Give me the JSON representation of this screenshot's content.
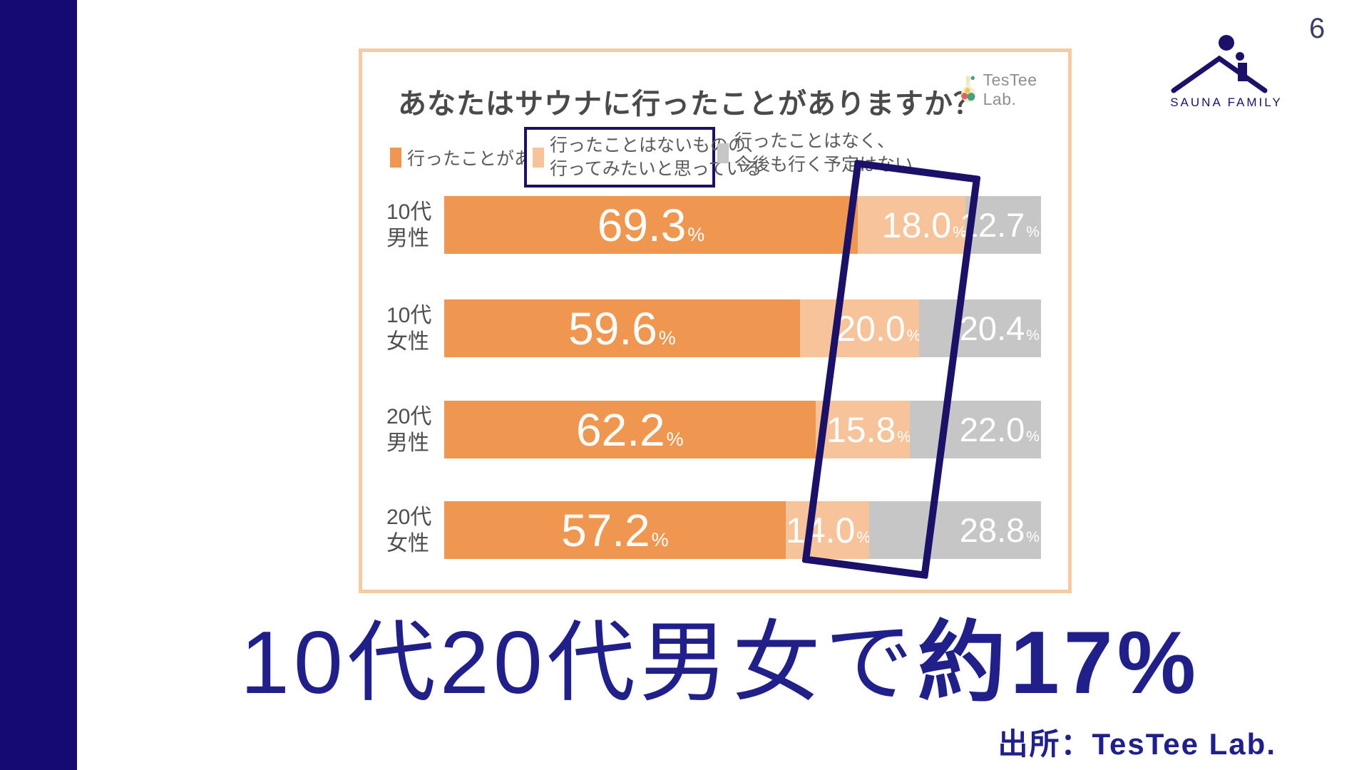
{
  "page": {
    "number": "6"
  },
  "brand": {
    "name": "SAUNA FAMILY"
  },
  "chart": {
    "title": "あなたはサウナに行ったことがありますか？",
    "watermark": "TesTee Lab.",
    "unit": "%",
    "legend": [
      {
        "label": "行ったことがある"
      },
      {
        "lines": [
          "行ったことはないものの、",
          "行ってみたいと思っている"
        ]
      },
      {
        "lines": [
          "行ったことはなく、",
          "今後も行く予定はない"
        ]
      }
    ],
    "rows": [
      {
        "label_lines": [
          "10代",
          "男性"
        ],
        "segments": [
          {
            "value": 69.3,
            "text": "69.3"
          },
          {
            "value": 18.0,
            "text": "18.0"
          },
          {
            "value": 12.7,
            "text": "12.7"
          }
        ]
      },
      {
        "label_lines": [
          "10代",
          "女性"
        ],
        "segments": [
          {
            "value": 59.6,
            "text": "59.6"
          },
          {
            "value": 20.0,
            "text": "20.0"
          },
          {
            "value": 20.4,
            "text": "20.4"
          }
        ]
      },
      {
        "label_lines": [
          "20代",
          "男性"
        ],
        "segments": [
          {
            "value": 62.2,
            "text": "62.2"
          },
          {
            "value": 15.8,
            "text": "15.8"
          },
          {
            "value": 22.0,
            "text": "22.0"
          }
        ]
      },
      {
        "label_lines": [
          "20代",
          "女性"
        ],
        "segments": [
          {
            "value": 57.2,
            "text": "57.2"
          },
          {
            "value": 14.0,
            "text": "14.0"
          },
          {
            "value": 28.8,
            "text": "28.8"
          }
        ]
      }
    ]
  },
  "chart_data": {
    "type": "bar",
    "orientation": "horizontal",
    "stacked": true,
    "title": "あなたはサウナに行ったことがありますか？",
    "categories": [
      "10代男性",
      "10代女性",
      "20代男性",
      "20代女性"
    ],
    "series": [
      {
        "name": "行ったことがある",
        "color": "#ef9650",
        "values": [
          69.3,
          59.6,
          62.2,
          57.2
        ]
      },
      {
        "name": "行ったことはないものの、行ってみたいと思っている",
        "color": "#f6c39a",
        "values": [
          18.0,
          20.0,
          15.8,
          14.0
        ]
      },
      {
        "name": "行ったことはなく、今後も行く予定はない",
        "color": "#c6c6c6",
        "values": [
          12.7,
          20.4,
          22.0,
          28.8
        ]
      }
    ],
    "unit": "%",
    "xlim": [
      0,
      100
    ],
    "value_labels": "inside-white",
    "highlighted_series": "行ったことはないものの、行ってみたいと思っている",
    "legend_position": "top"
  },
  "headline": {
    "normal": "10代20代男女で",
    "bold": "約17%"
  },
  "source": {
    "text": "出所：TesTee Lab."
  },
  "colors": {
    "sidebar_navy": "#150a73",
    "frame_navy": "#1b1168",
    "headline_navy": "#21208a",
    "bar_orange": "#ef9650",
    "bar_light_orange": "#f6c39a",
    "bar_gray": "#c6c6c6",
    "panel_border": "#f5cba4",
    "label_gray": "#4f4f4f"
  }
}
